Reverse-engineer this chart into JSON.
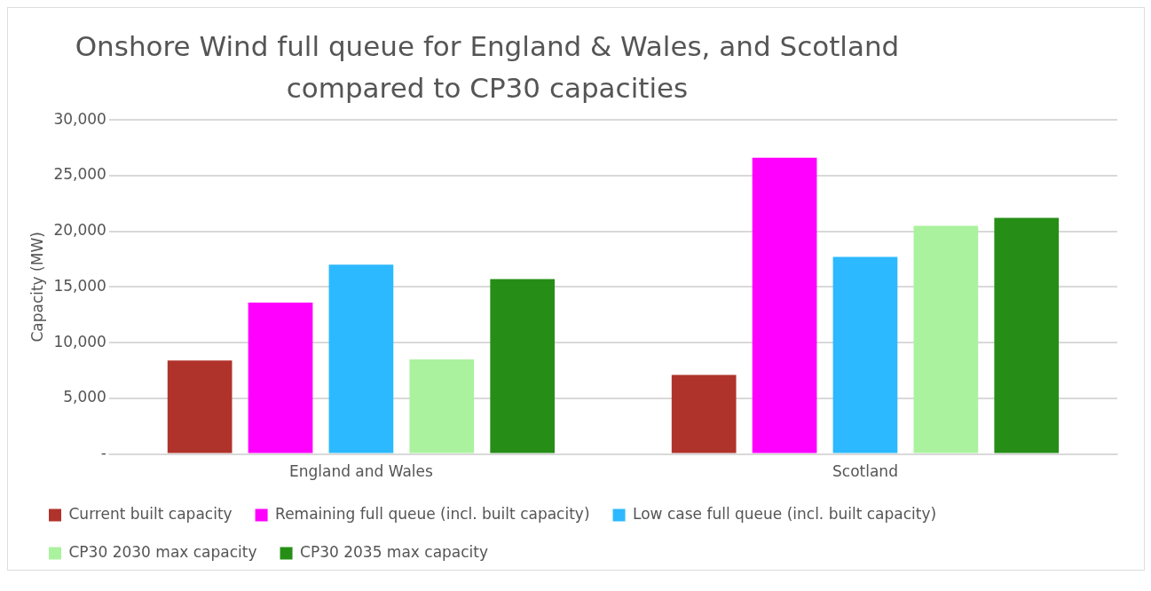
{
  "chart_data": {
    "type": "bar",
    "title": "Onshore Wind full queue for England & Wales, and Scotland compared to CP30 capacities",
    "ylabel": "Capacity (MW)",
    "categories": [
      "England and Wales",
      "Scotland"
    ],
    "series": [
      {
        "name": "Current built capacity",
        "color": "#b0332b",
        "values": [
          8400,
          7100
        ]
      },
      {
        "name": "Remaining full queue (incl. built capacity)",
        "color": "#ff00ff",
        "values": [
          13600,
          26600
        ]
      },
      {
        "name": "Low case full queue (incl. built capacity)",
        "color": "#2db9ff",
        "values": [
          17000,
          17700
        ]
      },
      {
        "name": "CP30 2030 max capacity",
        "color": "#aaf29e",
        "values": [
          8500,
          20500
        ]
      },
      {
        "name": "CP30 2035 max capacity",
        "color": "#268e17",
        "values": [
          15700,
          21200
        ]
      }
    ],
    "ylim": [
      0,
      30000
    ],
    "yticks": [
      {
        "value": 0,
        "label": "-"
      },
      {
        "value": 5000,
        "label": "5,000"
      },
      {
        "value": 10000,
        "label": "10,000"
      },
      {
        "value": 15000,
        "label": "15,000"
      },
      {
        "value": 20000,
        "label": "20,000"
      },
      {
        "value": 25000,
        "label": "25,000"
      },
      {
        "value": 30000,
        "label": "30,000"
      }
    ],
    "grid": "y",
    "legend": "bottom"
  }
}
